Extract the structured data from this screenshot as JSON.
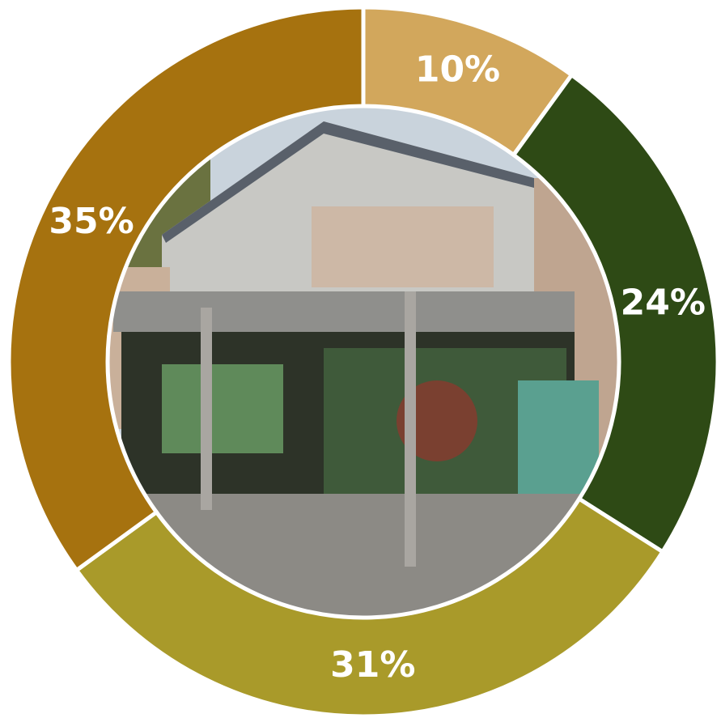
{
  "chart_data": {
    "type": "donut",
    "values": [
      10,
      24,
      31,
      35
    ],
    "value_labels": [
      "10%",
      "24%",
      "31%",
      "35%"
    ],
    "colors": [
      "#d2a75c",
      "#2e4a15",
      "#a99a2a",
      "#a6720f"
    ]
  }
}
